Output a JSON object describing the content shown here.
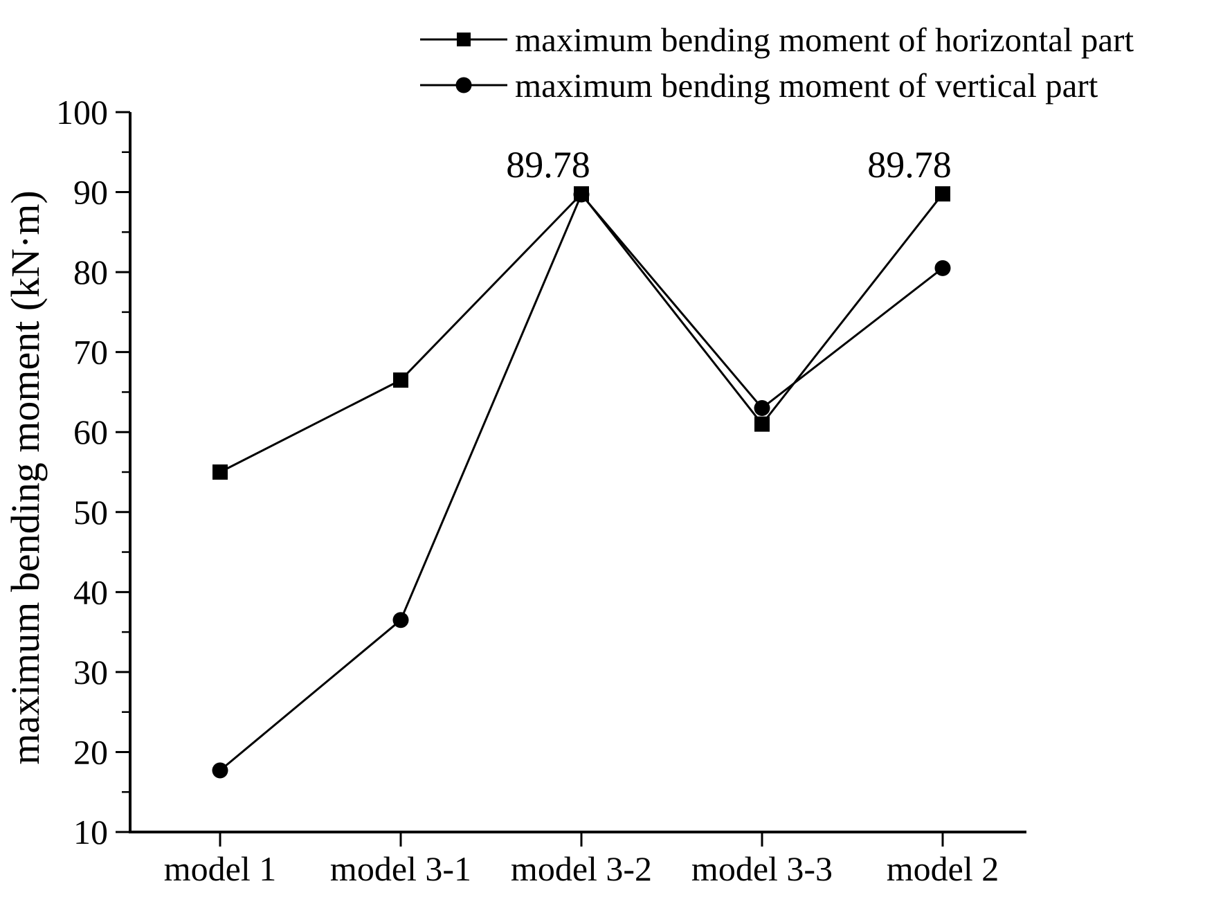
{
  "chart_data": {
    "type": "line",
    "categories": [
      "model 1",
      "model 3-1",
      "model 3-2",
      "model 3-3",
      "model 2"
    ],
    "series": [
      {
        "name": "maximum bending moment of horizontal part",
        "marker": "square",
        "values": [
          55,
          66.5,
          89.78,
          61,
          89.78
        ]
      },
      {
        "name": "maximum bending moment of vertical part",
        "marker": "circle",
        "values": [
          17.7,
          36.5,
          89.7,
          63,
          80.5
        ]
      }
    ],
    "title": "",
    "xlabel": "",
    "ylabel": "maximum bending moment (kN·m)",
    "ylim": [
      10,
      100
    ],
    "yticks": [
      10,
      20,
      30,
      40,
      50,
      60,
      70,
      80,
      90,
      100
    ],
    "minor_ytick_step": 5,
    "grid": false,
    "legend_position": "top",
    "annotations": [
      {
        "text": "89.78",
        "series": 0,
        "index": 2
      },
      {
        "text": "89.78",
        "series": 0,
        "index": 4
      }
    ],
    "line_color": "#000000",
    "background": "#ffffff"
  }
}
